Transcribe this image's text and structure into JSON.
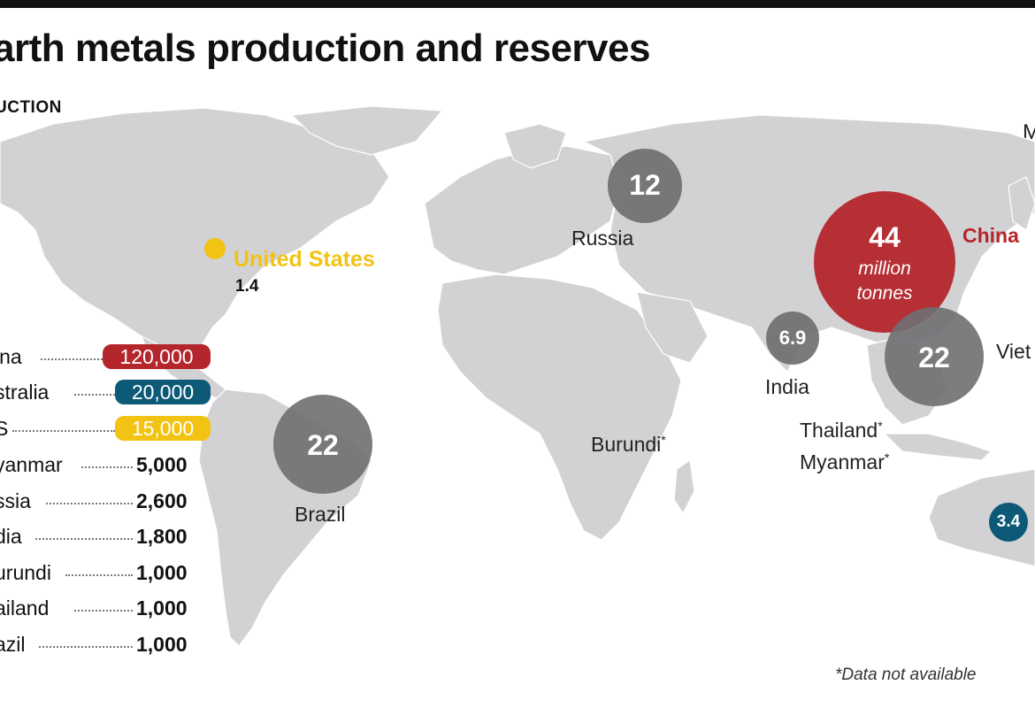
{
  "header": {
    "title": "arth metals production and reserves",
    "subtitle": "UCTION",
    "top_right_fragment": "M"
  },
  "colors": {
    "china": "#b4262c",
    "australia": "#0d5a78",
    "united_states": "#f2c313",
    "other": "#6f6f72",
    "land": "#d2d2d4"
  },
  "map_labels": {
    "united_states": {
      "name": "United States",
      "value": "1.4"
    },
    "russia": {
      "name": "Russia",
      "value": "12"
    },
    "china": {
      "name": "China",
      "value": "44",
      "unit_line1": "million",
      "unit_line2": "tonnes"
    },
    "india": {
      "name": "India",
      "value": "6.9"
    },
    "vietnam": {
      "name": "Viet",
      "value": "22"
    },
    "brazil": {
      "name": "Brazil",
      "value": "22"
    },
    "australia": {
      "value": "3.4"
    },
    "burundi": {
      "name": "Burundi",
      "mark": "*"
    },
    "thailand": {
      "name": "Thailand",
      "mark": "*"
    },
    "myanmar": {
      "name": "Myanmar",
      "mark": "*"
    }
  },
  "production_list": [
    {
      "name": "ina",
      "value": "120,000",
      "style": "china"
    },
    {
      "name": "stralia",
      "value": "20,000",
      "style": "australia"
    },
    {
      "name": "S",
      "value": "15,000",
      "style": "united_states"
    },
    {
      "name": "yanmar",
      "value": "5,000",
      "style": "plain"
    },
    {
      "name": "ssia",
      "value": "2,600",
      "style": "plain"
    },
    {
      "name": "dia",
      "value": "1,800",
      "style": "plain"
    },
    {
      "name": "urundi",
      "value": "1,000",
      "style": "plain"
    },
    {
      "name": "ailand",
      "value": "1,000",
      "style": "plain"
    },
    {
      "name": "azil",
      "value": "1,000",
      "style": "plain"
    }
  ],
  "footnote": "*Data not available"
}
